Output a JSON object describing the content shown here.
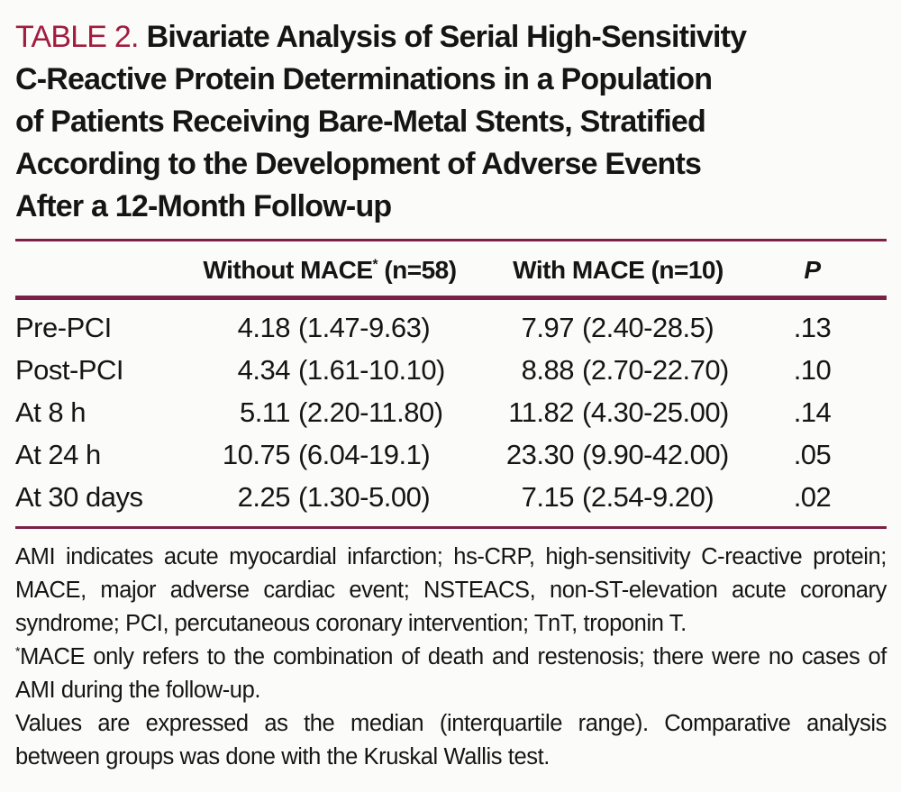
{
  "colors": {
    "table_label_red": "#A21C3E",
    "rule_maroon": "#7B2145",
    "text_black": "#151515",
    "background": "#FBFCFA"
  },
  "title": {
    "label": "TABLE 2.",
    "lines": [
      "Bivariate Analysis of Serial High-Sensitivity",
      "C-Reactive Protein Determinations in a Population",
      "of Patients Receiving Bare-Metal Stents, Stratified",
      "According to the Development of Adverse Events",
      "After a 12-Month Follow-up"
    ]
  },
  "table": {
    "headers": {
      "without_mace": {
        "text": "Without MACE",
        "sup": "*",
        "n": "(n=58)"
      },
      "with_mace": {
        "text": "With MACE",
        "n": "(n=10)"
      },
      "p": "P"
    },
    "rows": [
      {
        "label": "Pre-PCI",
        "without": {
          "median": "4.18",
          "range": "(1.47-9.63)"
        },
        "with": {
          "median": "7.97",
          "range": "(2.40-28.5)"
        },
        "p": ".13"
      },
      {
        "label": "Post-PCI",
        "without": {
          "median": "4.34",
          "range": "(1.61-10.10)"
        },
        "with": {
          "median": "8.88",
          "range": "(2.70-22.70)"
        },
        "p": ".10"
      },
      {
        "label": "At 8 h",
        "without": {
          "median": "5.11",
          "range": "(2.20-11.80)"
        },
        "with": {
          "median": "11.82",
          "range": "(4.30-25.00)"
        },
        "p": ".14"
      },
      {
        "label": "At 24 h",
        "without": {
          "median": "10.75",
          "range": "(6.04-19.1)"
        },
        "with": {
          "median": "23.30",
          "range": "(9.90-42.00)"
        },
        "p": ".05"
      },
      {
        "label": "At 30 days",
        "without": {
          "median": "2.25",
          "range": "(1.30-5.00)"
        },
        "with": {
          "median": "7.15",
          "range": "(2.54-9.20)"
        },
        "p": ".02"
      }
    ]
  },
  "footnotes": {
    "abbreviations": "AMI indicates acute myocardial infarction; hs-CRP, high-sensitivity C-reactive protein; MACE, major adverse cardiac event; NSTEACS, non-ST-elevation acute coronary syndrome; PCI, percutaneous coronary intervention; TnT, troponin T.",
    "star": "*",
    "mace_note": "MACE only refers to the combination of death and restenosis; there were no cases of AMI during the follow-up.",
    "values_note": "Values are expressed as the median (interquartile range). Comparative analysis between groups was done with the Kruskal Wallis test."
  }
}
